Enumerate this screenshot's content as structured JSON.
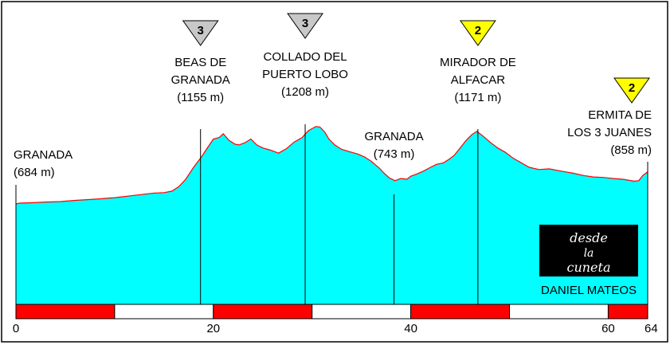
{
  "chart_data": {
    "type": "area",
    "xlim": [
      0,
      64
    ],
    "ylim": [
      400,
      1350
    ],
    "x_ticks": [
      "0",
      "20",
      "40",
      "60",
      "64"
    ],
    "tick_values": [
      0,
      20,
      40,
      60,
      64
    ],
    "profile": [
      [
        0,
        684
      ],
      [
        0.4,
        690
      ],
      [
        1.5,
        692
      ],
      [
        3,
        697
      ],
      [
        4.5,
        700
      ],
      [
        6,
        708
      ],
      [
        8,
        716
      ],
      [
        10,
        726
      ],
      [
        12,
        742
      ],
      [
        14,
        757
      ],
      [
        15,
        760
      ],
      [
        15.8,
        770
      ],
      [
        16.5,
        800
      ],
      [
        17.2,
        850
      ],
      [
        18,
        930
      ],
      [
        18.8,
        1000
      ],
      [
        19.3,
        1050
      ],
      [
        20,
        1120
      ],
      [
        20.6,
        1130
      ],
      [
        21,
        1155
      ],
      [
        21.6,
        1110
      ],
      [
        22.2,
        1085
      ],
      [
        22.6,
        1080
      ],
      [
        23.2,
        1095
      ],
      [
        23.8,
        1120
      ],
      [
        24.4,
        1080
      ],
      [
        25,
        1060
      ],
      [
        25.8,
        1045
      ],
      [
        26.6,
        1025
      ],
      [
        27.4,
        1055
      ],
      [
        28.2,
        1100
      ],
      [
        29,
        1130
      ],
      [
        29.6,
        1175
      ],
      [
        30,
        1190
      ],
      [
        30.4,
        1204
      ],
      [
        30.8,
        1200
      ],
      [
        31.3,
        1165
      ],
      [
        31.7,
        1120
      ],
      [
        32.3,
        1080
      ],
      [
        33,
        1050
      ],
      [
        33.8,
        1035
      ],
      [
        34.6,
        1020
      ],
      [
        35.3,
        1000
      ],
      [
        36,
        970
      ],
      [
        36.8,
        925
      ],
      [
        37.3,
        890
      ],
      [
        37.8,
        860
      ],
      [
        38.4,
        840
      ],
      [
        39,
        855
      ],
      [
        39.6,
        850
      ],
      [
        40,
        870
      ],
      [
        40.6,
        885
      ],
      [
        41.3,
        905
      ],
      [
        42,
        930
      ],
      [
        42.6,
        950
      ],
      [
        43.3,
        960
      ],
      [
        43.9,
        985
      ],
      [
        44.4,
        1010
      ],
      [
        45,
        1060
      ],
      [
        45.6,
        1110
      ],
      [
        46.2,
        1150
      ],
      [
        46.7,
        1171
      ],
      [
        47.3,
        1140
      ],
      [
        48,
        1100
      ],
      [
        48.8,
        1060
      ],
      [
        49.6,
        1030
      ],
      [
        50.4,
        990
      ],
      [
        51.2,
        960
      ],
      [
        52,
        930
      ],
      [
        53,
        915
      ],
      [
        54,
        920
      ],
      [
        55.2,
        905
      ],
      [
        56.5,
        890
      ],
      [
        57.5,
        875
      ],
      [
        58.5,
        865
      ],
      [
        59.5,
        862
      ],
      [
        60.5,
        855
      ],
      [
        61.5,
        850
      ],
      [
        62.6,
        837
      ],
      [
        63.1,
        840
      ],
      [
        63.5,
        875
      ],
      [
        64,
        900
      ]
    ],
    "waypoints": [
      {
        "name_lines": [
          "GRANADA"
        ],
        "altitude": "(684 m)",
        "km": 0,
        "elev": 684
      },
      {
        "name_lines": [
          "BEAS DE",
          "GRANADA"
        ],
        "altitude": "(1155 m)",
        "km": 18.7,
        "elev": 1155
      },
      {
        "name_lines": [
          "COLLADO DEL",
          "PUERTO LOBO"
        ],
        "altitude": "(1208 m)",
        "km": 29.3,
        "elev": 1208
      },
      {
        "name_lines": [
          "GRANADA"
        ],
        "altitude": "(743 m)",
        "km": 38.3,
        "elev": 743
      },
      {
        "name_lines": [
          "MIRADOR DE",
          "ALFACAR"
        ],
        "altitude": "(1171 m)",
        "km": 46.8,
        "elev": 1171
      },
      {
        "name_lines": [
          "ERMITA DE",
          "LOS 3 JUANES"
        ],
        "altitude": "(858 m)",
        "km": 64,
        "elev": 858
      }
    ],
    "climb_categories": [
      {
        "category": "3",
        "km": 18.7,
        "color": "#c8c8c8"
      },
      {
        "category": "3",
        "km": 29.3,
        "color": "#c8c8c8"
      },
      {
        "category": "2",
        "km": 46.8,
        "color": "#ffff00"
      },
      {
        "category": "2",
        "km": 64,
        "color": "#ffff00"
      }
    ],
    "scale_segments": [
      [
        0,
        10,
        "#ff0000"
      ],
      [
        10,
        20,
        "#ffffff"
      ],
      [
        20,
        30,
        "#ff0000"
      ],
      [
        30,
        40,
        "#ffffff"
      ],
      [
        40,
        50,
        "#ff0000"
      ],
      [
        50,
        60,
        "#ffffff"
      ],
      [
        60,
        64,
        "#ff0000"
      ]
    ]
  },
  "colors": {
    "fill": "#00ffff",
    "outline": "#ff0000",
    "frame": "#000000"
  },
  "logo": {
    "line1": "desde",
    "line2": "la",
    "line3": "cuneta",
    "author": "DANIEL MATEOS"
  }
}
